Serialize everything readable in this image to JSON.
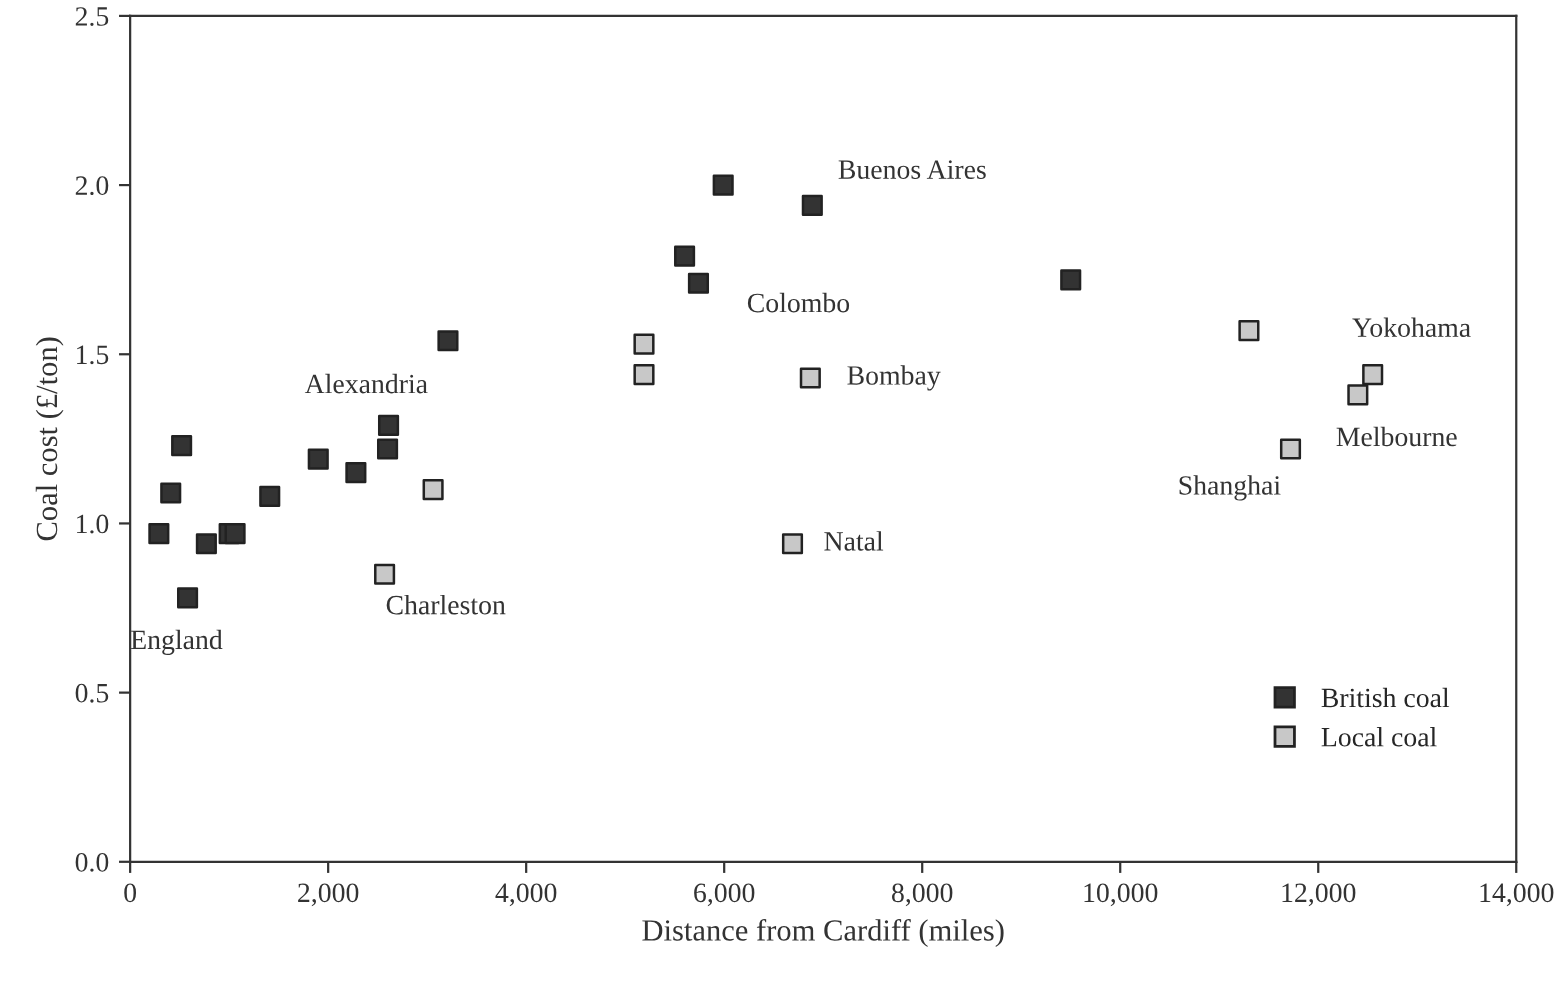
{
  "chart_data": {
    "type": "scatter",
    "xlabel": "Distance from Cardiff (miles)",
    "ylabel": "Coal cost (£/ton)",
    "xlim": [
      0,
      14000
    ],
    "ylim": [
      0,
      2.5
    ],
    "xticks": [
      0,
      {
        "value": 2000,
        "label": "2,000"
      },
      {
        "value": 4000,
        "label": "4,000"
      },
      {
        "value": 6000,
        "label": "6,000"
      },
      {
        "value": 8000,
        "label": "8,000"
      },
      {
        "value": 10000,
        "label": "10,000"
      },
      {
        "value": 12000,
        "label": "12,000"
      },
      {
        "value": 14000,
        "label": "14,000"
      }
    ],
    "yticks": [
      {
        "value": 0,
        "label": "0.0"
      },
      {
        "value": 0.5,
        "label": "0.5"
      },
      {
        "value": 1,
        "label": "1.0"
      },
      {
        "value": 1.5,
        "label": "1.5"
      },
      {
        "value": 2,
        "label": "2.0"
      },
      {
        "value": 2.5,
        "label": "2.5"
      }
    ],
    "marker": "square",
    "grid": false,
    "legend": "bottom right",
    "series": [
      {
        "name": "British coal",
        "color": "#333333",
        "x": [
          520,
          410,
          290,
          580,
          770,
          1000,
          1060,
          1410,
          1900,
          2280,
          2600,
          2610,
          3210,
          5990,
          6890,
          5600,
          5740,
          9500
        ],
        "values": [
          1.23,
          1.09,
          0.97,
          0.78,
          0.94,
          0.97,
          0.97,
          1.08,
          1.19,
          1.15,
          1.22,
          1.29,
          1.54,
          2.0,
          1.94,
          1.79,
          1.71,
          1.72
        ]
      },
      {
        "name": "Local coal",
        "color": "#c8c8c8",
        "x": [
          3060,
          2570,
          5190,
          5190,
          6870,
          6690,
          11300,
          12550,
          12400,
          11720
        ],
        "values": [
          1.1,
          0.85,
          1.53,
          1.44,
          1.43,
          0.94,
          1.57,
          1.44,
          1.38,
          1.22
        ]
      }
    ],
    "annotations": [
      {
        "text": "England",
        "x": 580,
        "y": 0.78
      },
      {
        "text": "Alexandria",
        "x": 2610,
        "y": 1.29
      },
      {
        "text": "Charleston",
        "x": 2570,
        "y": 0.85
      },
      {
        "text": "Buenos Aires",
        "x": 6890,
        "y": 1.94
      },
      {
        "text": "Colombo",
        "x": 5740,
        "y": 1.71
      },
      {
        "text": "Bombay",
        "x": 6870,
        "y": 1.43
      },
      {
        "text": "Natal",
        "x": 6690,
        "y": 0.94
      },
      {
        "text": "Yokohama",
        "x": 12550,
        "y": 1.44
      },
      {
        "text": "Melbourne",
        "x": 12400,
        "y": 1.38
      },
      {
        "text": "Shanghai",
        "x": 11720,
        "y": 1.22
      }
    ]
  }
}
